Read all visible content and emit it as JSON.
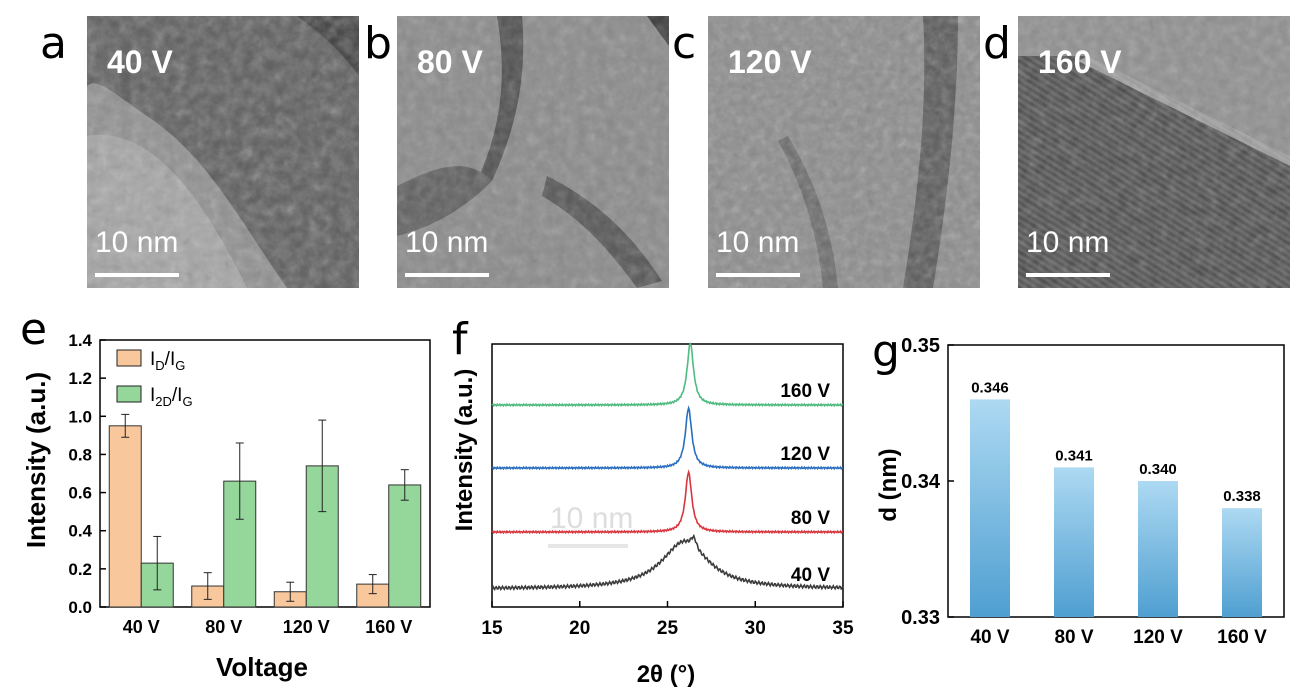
{
  "tem_panels": [
    {
      "letter": "a",
      "voltage": "40 V",
      "scale_bar": "10 nm"
    },
    {
      "letter": "b",
      "voltage": "80 V",
      "scale_bar": "10 nm"
    },
    {
      "letter": "c",
      "voltage": "120 V",
      "scale_bar": "10 nm"
    },
    {
      "letter": "d",
      "voltage": "160 V",
      "scale_bar": "10 nm"
    }
  ],
  "chart_data": [
    {
      "panel": "e",
      "type": "bar",
      "categories": [
        "40 V",
        "80 V",
        "120 V",
        "160 V"
      ],
      "series": [
        {
          "name": "ID/IG",
          "color": "#f9c79c",
          "values": [
            0.95,
            0.11,
            0.08,
            0.12
          ],
          "errors": [
            0.06,
            0.07,
            0.05,
            0.05
          ]
        },
        {
          "name": "I2D/IG",
          "color": "#95d69a",
          "values": [
            0.23,
            0.66,
            0.74,
            0.64
          ],
          "errors": [
            0.14,
            0.2,
            0.24,
            0.08
          ]
        }
      ],
      "xlabel": "Voltage",
      "ylabel": "Intensity (a.u.)",
      "ylim": [
        0,
        1.4
      ],
      "yticks": [
        "0.0",
        "0.2",
        "0.4",
        "0.6",
        "0.8",
        "1.0",
        "1.2",
        "1.4"
      ],
      "legend": [
        {
          "main": "I",
          "sub1": "D",
          "mid": "/I",
          "sub2": "G"
        },
        {
          "main": "I",
          "sub1": "2D",
          "mid": "/I",
          "sub2": "G"
        }
      ],
      "legend_position": "top-left"
    },
    {
      "panel": "f",
      "type": "line",
      "xlim": [
        15,
        35
      ],
      "xticks": [
        "15",
        "20",
        "25",
        "30",
        "35"
      ],
      "xlabel": "2θ (°)",
      "ylabel": "Intensity (a.u.)",
      "series": [
        {
          "name": "40 V",
          "color": "#3c3c3c",
          "peak": 26.0,
          "peak_shape": "broad"
        },
        {
          "name": "80 V",
          "color": "#d9363e",
          "peak": 26.2,
          "peak_shape": "sharp"
        },
        {
          "name": "120 V",
          "color": "#2a6fc0",
          "peak": 26.2,
          "peak_shape": "sharp"
        },
        {
          "name": "160 V",
          "color": "#4fbb7f",
          "peak": 26.3,
          "peak_shape": "sharp"
        }
      ],
      "watermark": "10 nm"
    },
    {
      "panel": "g",
      "type": "bar",
      "categories": [
        "40 V",
        "80 V",
        "120 V",
        "160 V"
      ],
      "values": [
        0.346,
        0.341,
        0.34,
        0.338
      ],
      "value_labels": [
        "0.346",
        "0.341",
        "0.340",
        "0.338"
      ],
      "ylabel": "d (nm)",
      "ylim": [
        0.33,
        0.35
      ],
      "yticks": [
        "0.33",
        "0.34",
        "0.35"
      ],
      "bar_gradient": [
        "#add9f2",
        "#4f9fd1"
      ]
    }
  ],
  "panel_letters": {
    "e": "e",
    "f": "f",
    "g": "g"
  }
}
